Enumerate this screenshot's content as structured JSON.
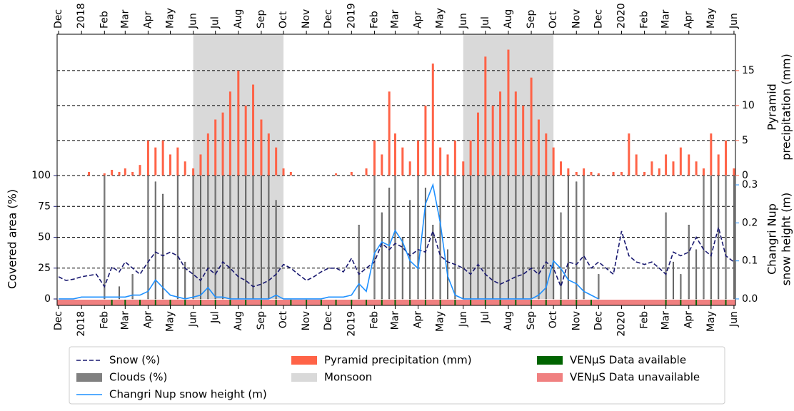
{
  "chart_data": {
    "type": "timeseries",
    "xlim": [
      "2017-11-29",
      "2020-06-03"
    ],
    "xticks": [
      {
        "value": "2017-12-01",
        "label": "Dec"
      },
      {
        "value": "2018-01-01",
        "label": "2018"
      },
      {
        "value": "2018-02-01",
        "label": "Feb"
      },
      {
        "value": "2018-03-01",
        "label": "Mar"
      },
      {
        "value": "2018-04-01",
        "label": "Apr"
      },
      {
        "value": "2018-05-01",
        "label": "May"
      },
      {
        "value": "2018-06-01",
        "label": "Jun"
      },
      {
        "value": "2018-07-01",
        "label": "Jul"
      },
      {
        "value": "2018-08-01",
        "label": "Aug"
      },
      {
        "value": "2018-09-01",
        "label": "Sep"
      },
      {
        "value": "2018-10-01",
        "label": "Oct"
      },
      {
        "value": "2018-11-01",
        "label": "Nov"
      },
      {
        "value": "2018-12-01",
        "label": "Dec"
      },
      {
        "value": "2019-01-01",
        "label": "2019"
      },
      {
        "value": "2019-02-01",
        "label": "Feb"
      },
      {
        "value": "2019-03-01",
        "label": "Mar"
      },
      {
        "value": "2019-04-01",
        "label": "Apr"
      },
      {
        "value": "2019-05-01",
        "label": "May"
      },
      {
        "value": "2019-06-01",
        "label": "Jun"
      },
      {
        "value": "2019-07-01",
        "label": "Jul"
      },
      {
        "value": "2019-08-01",
        "label": "Aug"
      },
      {
        "value": "2019-09-01",
        "label": "Sep"
      },
      {
        "value": "2019-10-01",
        "label": "Oct"
      },
      {
        "value": "2019-11-01",
        "label": "Nov"
      },
      {
        "value": "2019-12-01",
        "label": "Dec"
      },
      {
        "value": "2020-01-01",
        "label": "2020"
      },
      {
        "value": "2020-02-01",
        "label": "Feb"
      },
      {
        "value": "2020-03-01",
        "label": "Mar"
      },
      {
        "value": "2020-04-01",
        "label": "Apr"
      },
      {
        "value": "2020-05-01",
        "label": "May"
      },
      {
        "value": "2020-06-01",
        "label": "Jun"
      }
    ],
    "ylabel": "Covered area (%)",
    "ylabel_color": "#191970",
    "ylim": [
      -5.2,
      214.5
    ],
    "yticks": [
      0,
      25,
      50,
      75,
      100
    ],
    "y2label": [
      "Pyramid",
      "precipitation (mm)"
    ],
    "y2label_color": "#ff6347",
    "y2lim": [
      -18.6,
      20.2
    ],
    "y2ticks": [
      0,
      5,
      10,
      15
    ],
    "y3label": [
      "Changri Nup",
      "snow height (m)"
    ],
    "y3label_color": "#1e90ff",
    "y3lim": [
      -0.017,
      0.696
    ],
    "y3ticks": [
      {
        "value": 0,
        "label": "0.0"
      },
      0.1,
      0.2,
      0.3
    ],
    "grid": true,
    "x": [
      "2017-12-01",
      "2017-12-11",
      "2017-12-21",
      "2018-01-01",
      "2018-01-11",
      "2018-01-21",
      "2018-02-01",
      "2018-02-11",
      "2018-02-21",
      "2018-03-01",
      "2018-03-11",
      "2018-03-21",
      "2018-04-01",
      "2018-04-11",
      "2018-04-21",
      "2018-05-01",
      "2018-05-11",
      "2018-05-21",
      "2018-06-01",
      "2018-06-11",
      "2018-06-21",
      "2018-07-01",
      "2018-07-11",
      "2018-07-21",
      "2018-08-01",
      "2018-08-11",
      "2018-08-21",
      "2018-09-01",
      "2018-09-11",
      "2018-09-21",
      "2018-10-01",
      "2018-10-11",
      "2018-10-21",
      "2018-11-01",
      "2018-11-11",
      "2018-11-21",
      "2018-12-01",
      "2018-12-11",
      "2018-12-21",
      "2019-01-01",
      "2019-01-11",
      "2019-01-21",
      "2019-02-01",
      "2019-02-11",
      "2019-02-21",
      "2019-03-01",
      "2019-03-11",
      "2019-03-21",
      "2019-04-01",
      "2019-04-11",
      "2019-04-21",
      "2019-05-01",
      "2019-05-11",
      "2019-05-21",
      "2019-06-01",
      "2019-06-11",
      "2019-06-21",
      "2019-07-01",
      "2019-07-11",
      "2019-07-21",
      "2019-08-01",
      "2019-08-11",
      "2019-08-21",
      "2019-09-01",
      "2019-09-11",
      "2019-09-21",
      "2019-10-01",
      "2019-10-11",
      "2019-10-21",
      "2019-11-01",
      "2019-11-11",
      "2019-11-21",
      "2019-12-01",
      "2019-12-11",
      "2019-12-21",
      "2020-01-01",
      "2020-01-11",
      "2020-01-21",
      "2020-02-01",
      "2020-02-11",
      "2020-02-21",
      "2020-03-01",
      "2020-03-11",
      "2020-03-21",
      "2020-04-01",
      "2020-04-11",
      "2020-04-21",
      "2020-05-01",
      "2020-05-11",
      "2020-05-21",
      "2020-06-01"
    ],
    "series": [
      {
        "name": "Snow (%)",
        "kind": "line",
        "style": "dashed",
        "axis": "y",
        "color": "#191970",
        "values": [
          18,
          15,
          16,
          18,
          19,
          20,
          10,
          26,
          22,
          30,
          25,
          20,
          30,
          38,
          35,
          38,
          35,
          25,
          20,
          15,
          25,
          20,
          30,
          25,
          18,
          15,
          10,
          12,
          15,
          20,
          28,
          25,
          20,
          15,
          18,
          22,
          25,
          25,
          22,
          33,
          20,
          25,
          30,
          45,
          40,
          45,
          42,
          35,
          40,
          38,
          55,
          35,
          30,
          28,
          25,
          20,
          28,
          20,
          15,
          12,
          15,
          18,
          20,
          25,
          20,
          30,
          25,
          10,
          30,
          28,
          35,
          25,
          30,
          25,
          20,
          55,
          35,
          30,
          28,
          30,
          25,
          20,
          38,
          35,
          38,
          50,
          40,
          35,
          58,
          35,
          30
        ]
      },
      {
        "name": "Clouds (%)",
        "kind": "bar",
        "axis": "y",
        "color": "#808080",
        "values": [
          0,
          0,
          0,
          0,
          0,
          0,
          100,
          0,
          10,
          0,
          20,
          0,
          100,
          95,
          85,
          0,
          100,
          30,
          100,
          100,
          100,
          100,
          100,
          100,
          100,
          100,
          100,
          100,
          100,
          80,
          0,
          0,
          0,
          0,
          0,
          0,
          0,
          0,
          0,
          0,
          60,
          0,
          100,
          70,
          90,
          100,
          50,
          80,
          100,
          90,
          60,
          100,
          40,
          100,
          100,
          100,
          100,
          100,
          100,
          100,
          100,
          100,
          100,
          100,
          100,
          100,
          100,
          70,
          100,
          95,
          100,
          0,
          20,
          0,
          0,
          0,
          0,
          0,
          0,
          0,
          0,
          70,
          30,
          20,
          60,
          40,
          100,
          100,
          100,
          100,
          100
        ]
      },
      {
        "name": "Changri Nup snow height (m)",
        "kind": "line",
        "style": "solid",
        "axis": "y3",
        "color": "#1e90ff",
        "values": [
          0,
          0,
          0,
          0.005,
          0.005,
          0.005,
          0.005,
          0.005,
          0.005,
          0.005,
          0.01,
          0.01,
          0.02,
          0.05,
          0.03,
          0.01,
          0.005,
          0,
          0.005,
          0.01,
          0.03,
          0.005,
          0.005,
          0,
          0,
          0,
          0,
          0,
          0,
          0.01,
          0,
          0,
          0,
          0,
          0,
          0,
          0.005,
          0.005,
          0.005,
          0.01,
          0.04,
          0.02,
          0.12,
          0.15,
          0.14,
          0.18,
          0.15,
          0.1,
          0.08,
          0.25,
          0.3,
          0.2,
          0.06,
          0.01,
          0,
          0,
          0,
          0,
          0,
          0,
          0,
          0,
          0,
          0,
          0.01,
          0.03,
          0.1,
          0.08,
          0.05,
          0.04,
          0.02,
          0.01,
          0,
          null,
          null,
          null,
          null,
          null,
          null,
          null,
          null,
          null,
          null,
          null,
          null,
          null,
          null,
          null,
          null,
          null,
          null
        ]
      },
      {
        "name": "Pyramid precipitation (mm)",
        "kind": "bar",
        "axis": "y2",
        "color": "#ff6347",
        "values": [
          0,
          0,
          0,
          0,
          0.5,
          0,
          0.3,
          0.8,
          0.5,
          1,
          0.5,
          1.5,
          5,
          4,
          5,
          3,
          4,
          2,
          1,
          3,
          6,
          8,
          9,
          12,
          15,
          10,
          13,
          8,
          6,
          4,
          1,
          0.5,
          0,
          0,
          0,
          0,
          0,
          0.3,
          0,
          0.5,
          0,
          1,
          5,
          3,
          12,
          6,
          4,
          2,
          5,
          10,
          16,
          4,
          3,
          5,
          2,
          5,
          9,
          17,
          10,
          12,
          18,
          12,
          10,
          14,
          8,
          6,
          4,
          2,
          1,
          0.5,
          1,
          0.5,
          0.3,
          0,
          0.5,
          0.5,
          6,
          3,
          0.5,
          2,
          1,
          3,
          2,
          4,
          3,
          2,
          1,
          6,
          3,
          5,
          1
        ]
      }
    ],
    "monsoon": {
      "name": "Monsoon",
      "color": "#d9d9d9",
      "periods": [
        [
          "2018-06-01",
          "2018-10-01"
        ],
        [
          "2019-06-01",
          "2019-10-01"
        ]
      ]
    },
    "venus": {
      "available": {
        "name": "VENµS Data available",
        "color": "#006400",
        "dates": [
          "2018-02-11",
          "2018-03-01",
          "2018-03-21",
          "2018-04-11",
          "2018-05-01",
          "2018-05-21",
          "2018-06-11",
          "2018-07-01",
          "2018-07-21",
          "2018-08-11",
          "2018-09-01",
          "2018-09-21",
          "2018-10-11",
          "2018-11-01",
          "2018-11-21",
          "2018-12-11",
          "2019-01-01",
          "2019-01-21",
          "2019-02-11",
          "2019-03-01",
          "2019-03-21",
          "2019-04-11",
          "2019-05-01",
          "2019-05-21",
          "2019-06-11",
          "2019-07-01",
          "2019-07-21",
          "2019-08-11",
          "2019-09-01",
          "2019-09-21",
          "2019-10-11",
          "2019-11-01",
          "2019-11-21",
          "2020-03-01",
          "2020-03-21",
          "2020-04-11",
          "2020-05-01",
          "2020-05-21"
        ]
      },
      "unavailable": {
        "name": "VENµS Data unavailable",
        "color": "#f08080"
      }
    },
    "legend": "lower center"
  }
}
